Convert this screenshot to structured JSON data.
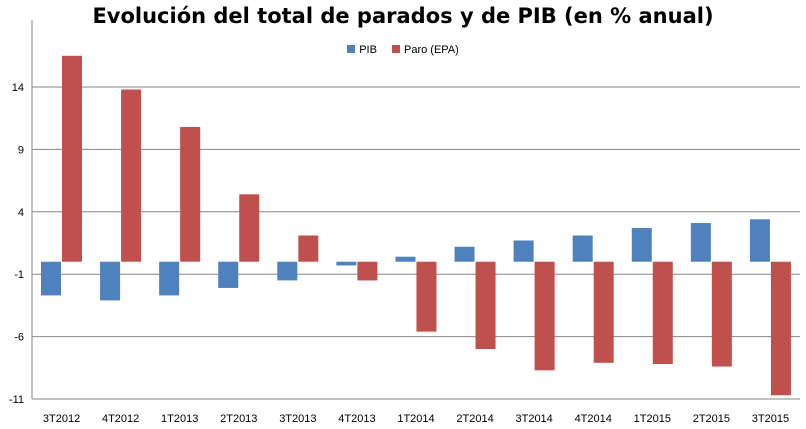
{
  "chart_data": {
    "type": "bar",
    "title": "Evolución del total de parados y de PIB (en % anual)",
    "xlabel": "",
    "ylabel": "",
    "categories": [
      "3T2012",
      "4T2012",
      "1T2013",
      "2T2013",
      "3T2013",
      "4T2013",
      "1T2014",
      "2T2014",
      "3T2014",
      "4T2014",
      "1T2015",
      "2T2015",
      "3T2015"
    ],
    "series": [
      {
        "name": "PIB",
        "color": "#4F81BD",
        "values": [
          -2.7,
          -3.1,
          -2.7,
          -2.1,
          -1.5,
          -0.3,
          0.4,
          1.2,
          1.7,
          2.1,
          2.7,
          3.1,
          3.4
        ]
      },
      {
        "name": "Paro (EPA)",
        "color": "#C0504D",
        "values": [
          16.5,
          13.8,
          10.8,
          5.4,
          2.1,
          -1.5,
          -5.6,
          -7.0,
          -8.7,
          -8.1,
          -8.2,
          -8.4,
          -10.7
        ]
      }
    ],
    "yticks": [
      14,
      9,
      4,
      -1,
      -6,
      -11
    ],
    "ylim": [
      -11,
      18
    ],
    "legend_position": "top",
    "grid": true
  }
}
